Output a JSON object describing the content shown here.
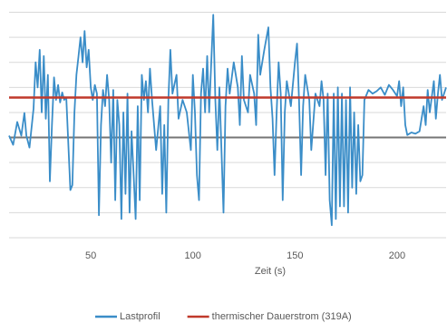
{
  "chart_data": {
    "type": "line",
    "x_label": "Zeit (s)",
    "xlim": [
      10,
      224
    ],
    "xticks": [
      50,
      100,
      150,
      200
    ],
    "ylim": [
      -800,
      1000
    ],
    "yticks": [
      -800,
      -600,
      -400,
      -200,
      0,
      200,
      400,
      600,
      800,
      1000
    ],
    "grid": true,
    "legend": "bottom",
    "x": [
      10,
      12,
      14,
      16,
      17.5,
      18.5,
      20,
      22,
      23,
      24,
      25,
      26,
      27,
      28,
      29,
      30,
      31,
      32,
      33,
      34,
      35,
      36,
      37,
      38,
      40,
      41,
      42,
      43,
      44,
      45,
      46,
      47,
      48,
      49,
      50,
      51,
      52,
      53,
      54,
      55,
      56,
      57,
      58,
      59,
      60,
      61,
      62,
      63,
      64,
      65,
      66,
      67,
      68,
      69,
      70,
      71,
      72,
      73,
      74,
      75,
      76,
      77,
      78,
      79,
      80,
      82,
      84,
      85,
      86,
      87,
      88,
      89,
      90,
      92,
      93,
      95,
      97,
      99,
      100,
      101,
      102,
      103,
      104,
      105,
      106,
      107,
      108,
      109,
      110,
      111,
      112,
      113,
      115,
      116,
      117,
      118,
      120,
      122,
      123,
      124,
      125,
      127,
      128,
      130,
      131,
      132,
      133,
      135,
      137,
      138,
      139,
      140,
      141,
      142,
      143,
      144,
      145,
      146,
      148,
      150,
      151,
      152,
      153,
      154,
      155,
      157,
      158,
      160,
      162,
      163,
      164,
      165,
      166,
      167,
      168,
      169,
      170,
      171,
      172,
      173,
      174,
      175,
      176,
      177,
      178,
      179,
      180,
      181,
      182,
      183,
      184,
      186,
      188,
      190,
      192,
      194,
      196,
      198,
      200,
      201,
      202,
      203,
      204,
      205,
      207,
      209,
      211,
      213,
      214,
      215,
      216,
      218,
      219,
      220,
      221,
      222,
      224
    ],
    "series": [
      {
        "name": "Lastprofil",
        "color": "#3a8dc8",
        "values": [
          15,
          -58,
          124,
          15,
          196,
          15,
          -80,
          230,
          600,
          400,
          700,
          200,
          650,
          150,
          500,
          -350,
          100,
          480,
          300,
          420,
          280,
          360,
          300,
          320,
          -420,
          -380,
          200,
          500,
          650,
          800,
          600,
          850,
          560,
          700,
          400,
          300,
          420,
          350,
          -620,
          100,
          380,
          250,
          500,
          300,
          -200,
          380,
          -500,
          300,
          100,
          -650,
          200,
          -450,
          350,
          -600,
          50,
          -300,
          -650,
          250,
          -500,
          500,
          300,
          450,
          200,
          550,
          300,
          -100,
          250,
          -450,
          100,
          -600,
          300,
          700,
          350,
          500,
          150,
          300,
          200,
          -100,
          500,
          200,
          -300,
          -500,
          350,
          550,
          200,
          650,
          200,
          600,
          980,
          300,
          -100,
          400,
          -600,
          250,
          550,
          350,
          600,
          400,
          100,
          650,
          300,
          200,
          500,
          350,
          100,
          820,
          500,
          700,
          880,
          400,
          150,
          -300,
          200,
          600,
          350,
          -500,
          200,
          450,
          250,
          600,
          750,
          300,
          -300,
          250,
          500,
          300,
          -100,
          350,
          250,
          450,
          300,
          -300,
          350,
          -500,
          -700,
          350,
          -650,
          400,
          -550,
          350,
          -550,
          300,
          -600,
          400,
          -400,
          200,
          -450,
          100,
          -350,
          -300,
          300,
          380,
          350,
          370,
          400,
          340,
          420,
          380,
          330,
          450,
          250,
          400,
          100,
          20,
          40,
          30,
          50,
          250,
          100,
          380,
          200,
          450,
          150,
          350,
          500,
          300,
          400
        ]
      }
    ],
    "reference_lines": [
      {
        "name": "thermischer Dauerstrom (319A)",
        "color": "#c0392b",
        "value": 319
      }
    ]
  }
}
